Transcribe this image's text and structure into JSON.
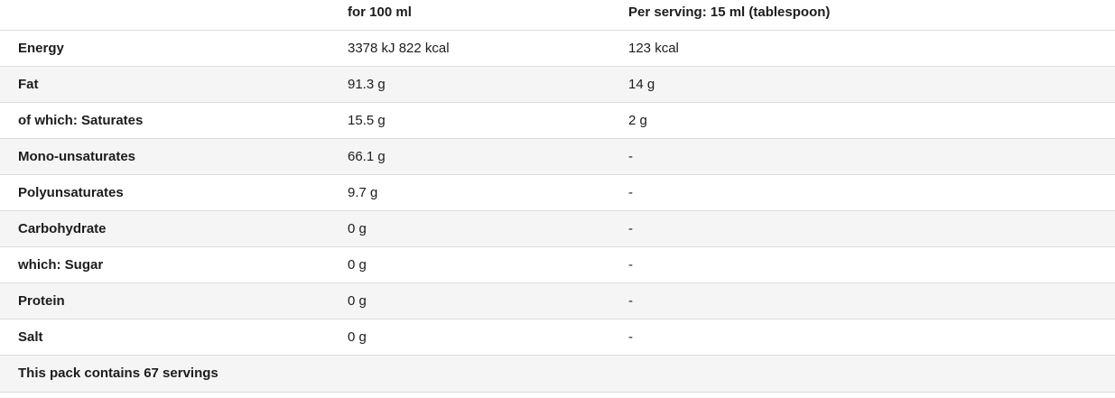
{
  "table": {
    "columns": [
      {
        "label": ""
      },
      {
        "label": "for 100 ml"
      },
      {
        "label": "Per serving: 15 ml (tablespoon)"
      }
    ],
    "rows": [
      {
        "label": "Energy",
        "per_100ml": "3378 kJ 822 kcal",
        "per_serving": "123 kcal"
      },
      {
        "label": "Fat",
        "per_100ml": "91.3 g",
        "per_serving": "14 g"
      },
      {
        "label": "of which: Saturates",
        "per_100ml": "15.5 g",
        "per_serving": "2 g"
      },
      {
        "label": "Mono-unsaturates",
        "per_100ml": "66.1 g",
        "per_serving": "-"
      },
      {
        "label": "Polyunsaturates",
        "per_100ml": "9.7 g",
        "per_serving": "-"
      },
      {
        "label": "Carbohydrate",
        "per_100ml": "0 g",
        "per_serving": "-"
      },
      {
        "label": "which: Sugar",
        "per_100ml": "0 g",
        "per_serving": "-"
      },
      {
        "label": "Protein",
        "per_100ml": "0 g",
        "per_serving": "-"
      },
      {
        "label": "Salt",
        "per_100ml": "0 g",
        "per_serving": "-"
      }
    ],
    "footer": "This pack contains 67 servings"
  },
  "colors": {
    "row_stripe": "#f5f5f5",
    "border": "#dcdcdc",
    "text": "#1c1c1c",
    "background": "#ffffff"
  }
}
